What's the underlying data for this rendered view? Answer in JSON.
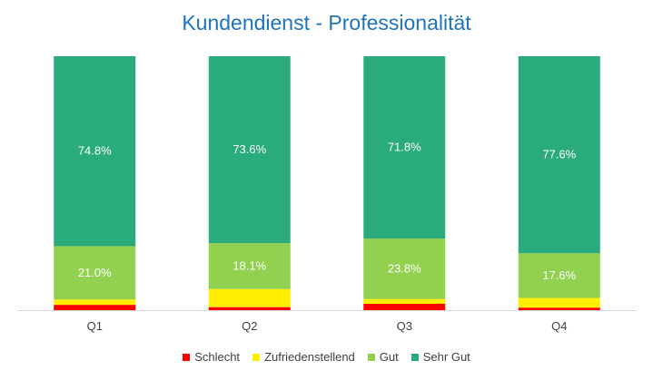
{
  "chart_data": {
    "type": "bar",
    "stacked": true,
    "title": "Kundendienst - Professionalität",
    "categories": [
      "Q1",
      "Q2",
      "Q3",
      "Q4"
    ],
    "ylim": [
      0,
      100
    ],
    "grid": false,
    "legend_position": "bottom",
    "series": [
      {
        "name": "Schlecht",
        "color": "#ff0000",
        "values": [
          2.1,
          1.2,
          2.5,
          1.0
        ]
      },
      {
        "name": "Zufriedenstellend",
        "color": "#ffee00",
        "values": [
          2.1,
          7.1,
          1.9,
          3.8
        ]
      },
      {
        "name": "Gut",
        "color": "#92d050",
        "values": [
          21.0,
          18.1,
          23.8,
          17.6
        ],
        "labels": [
          "21.0%",
          "18.1%",
          "23.8%",
          "17.6%"
        ]
      },
      {
        "name": "Sehr Gut",
        "color": "#2aab7b",
        "values": [
          74.8,
          73.6,
          71.8,
          77.6
        ],
        "labels": [
          "74.8%",
          "73.6%",
          "71.8%",
          "77.6%"
        ]
      }
    ]
  }
}
